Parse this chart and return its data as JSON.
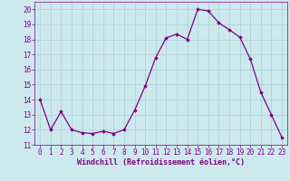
{
  "x": [
    0,
    1,
    2,
    3,
    4,
    5,
    6,
    7,
    8,
    9,
    10,
    11,
    12,
    13,
    14,
    15,
    16,
    17,
    18,
    19,
    20,
    21,
    22,
    23
  ],
  "y": [
    14.0,
    12.0,
    13.2,
    12.0,
    11.8,
    11.75,
    11.9,
    11.75,
    12.0,
    13.3,
    14.9,
    16.8,
    18.1,
    18.35,
    18.0,
    20.0,
    19.9,
    19.1,
    18.65,
    18.15,
    16.7,
    14.5,
    13.0,
    11.5
  ],
  "line_color": "#800080",
  "marker": "D",
  "marker_size": 1.8,
  "linewidth": 0.9,
  "xlabel": "Windchill (Refroidissement éolien,°C)",
  "xlabel_fontsize": 6.0,
  "ylim": [
    11,
    20.5
  ],
  "xlim": [
    -0.5,
    23.5
  ],
  "yticks": [
    11,
    12,
    13,
    14,
    15,
    16,
    17,
    18,
    19,
    20
  ],
  "xticks": [
    0,
    1,
    2,
    3,
    4,
    5,
    6,
    7,
    8,
    9,
    10,
    11,
    12,
    13,
    14,
    15,
    16,
    17,
    18,
    19,
    20,
    21,
    22,
    23
  ],
  "tick_fontsize": 5.5,
  "bg_color": "#cce9ed",
  "grid_color": "#aacdd4",
  "grid_linewidth": 0.5
}
